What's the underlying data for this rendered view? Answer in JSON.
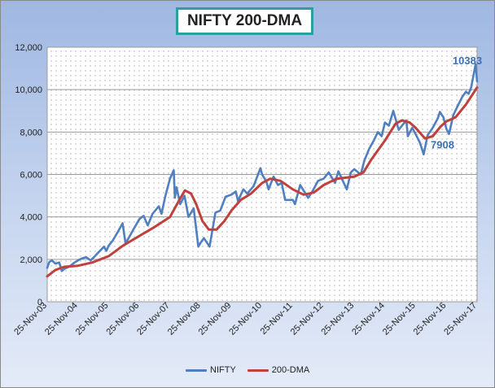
{
  "chart_data": {
    "type": "line",
    "title": "NIFTY 200-DMA",
    "xlabel": "",
    "ylabel": "",
    "ylim": [
      0,
      12000
    ],
    "yticks": [
      "0",
      "2,000",
      "4,000",
      "6,000",
      "8,000",
      "10,000",
      "12,000"
    ],
    "xticks": [
      "25-Nov-03",
      "25-Nov-04",
      "25-Nov-05",
      "25-Nov-06",
      "25-Nov-07",
      "25-Nov-08",
      "25-Nov-09",
      "25-Nov-10",
      "25-Nov-11",
      "25-Nov-12",
      "25-Nov-13",
      "25-Nov-14",
      "25-Nov-15",
      "25-Nov-16",
      "25-Nov-17"
    ],
    "grid": true,
    "legend": "bottom",
    "series": [
      {
        "name": "NIFTY",
        "color": "#4f7fc0",
        "points": [
          [
            "2003-11-25",
            1600
          ],
          [
            "2003-12-20",
            1880
          ],
          [
            "2004-01-20",
            1950
          ],
          [
            "2004-03-01",
            1800
          ],
          [
            "2004-04-15",
            1850
          ],
          [
            "2004-05-17",
            1450
          ],
          [
            "2004-06-15",
            1550
          ],
          [
            "2004-08-10",
            1650
          ],
          [
            "2004-10-15",
            1850
          ],
          [
            "2004-11-25",
            1950
          ],
          [
            "2005-01-15",
            2050
          ],
          [
            "2005-03-01",
            2100
          ],
          [
            "2005-04-25",
            1950
          ],
          [
            "2005-06-15",
            2150
          ],
          [
            "2005-08-01",
            2350
          ],
          [
            "2005-10-01",
            2600
          ],
          [
            "2005-10-28",
            2400
          ],
          [
            "2005-11-25",
            2650
          ],
          [
            "2006-01-15",
            2900
          ],
          [
            "2006-03-15",
            3300
          ],
          [
            "2006-05-10",
            3700
          ],
          [
            "2006-06-14",
            2750
          ],
          [
            "2006-07-20",
            3000
          ],
          [
            "2006-09-15",
            3400
          ],
          [
            "2006-11-25",
            3900
          ],
          [
            "2007-01-15",
            4050
          ],
          [
            "2007-03-05",
            3600
          ],
          [
            "2007-05-01",
            4150
          ],
          [
            "2007-07-15",
            4500
          ],
          [
            "2007-08-16",
            4150
          ],
          [
            "2007-10-01",
            5000
          ],
          [
            "2007-11-25",
            5800
          ],
          [
            "2008-01-08",
            6200
          ],
          [
            "2008-01-22",
            4900
          ],
          [
            "2008-02-10",
            5400
          ],
          [
            "2008-03-25",
            4600
          ],
          [
            "2008-05-15",
            5000
          ],
          [
            "2008-07-01",
            4000
          ],
          [
            "2008-09-01",
            4400
          ],
          [
            "2008-10-27",
            2600
          ],
          [
            "2008-11-25",
            2800
          ],
          [
            "2009-01-01",
            3000
          ],
          [
            "2009-03-09",
            2600
          ],
          [
            "2009-05-18",
            4200
          ],
          [
            "2009-07-15",
            4300
          ],
          [
            "2009-09-15",
            4950
          ],
          [
            "2009-11-25",
            5050
          ],
          [
            "2010-01-15",
            5200
          ],
          [
            "2010-02-10",
            4750
          ],
          [
            "2010-04-15",
            5300
          ],
          [
            "2010-06-01",
            5100
          ],
          [
            "2010-08-15",
            5450
          ],
          [
            "2010-11-05",
            6300
          ],
          [
            "2010-11-25",
            6000
          ],
          [
            "2011-01-15",
            5650
          ],
          [
            "2011-02-10",
            5300
          ],
          [
            "2011-04-10",
            5900
          ],
          [
            "2011-06-01",
            5500
          ],
          [
            "2011-07-15",
            5600
          ],
          [
            "2011-08-25",
            4800
          ],
          [
            "2011-11-25",
            4800
          ],
          [
            "2011-12-20",
            4600
          ],
          [
            "2012-02-20",
            5500
          ],
          [
            "2012-05-25",
            4900
          ],
          [
            "2012-07-15",
            5200
          ],
          [
            "2012-09-20",
            5700
          ],
          [
            "2012-11-25",
            5800
          ],
          [
            "2013-01-25",
            6100
          ],
          [
            "2013-04-10",
            5600
          ],
          [
            "2013-05-20",
            6150
          ],
          [
            "2013-08-28",
            5300
          ],
          [
            "2013-10-15",
            6100
          ],
          [
            "2013-11-25",
            6250
          ],
          [
            "2014-02-10",
            6000
          ],
          [
            "2014-03-25",
            6650
          ],
          [
            "2014-05-20",
            7200
          ],
          [
            "2014-07-15",
            7600
          ],
          [
            "2014-09-01",
            8000
          ],
          [
            "2014-10-17",
            7800
          ],
          [
            "2014-11-25",
            8450
          ],
          [
            "2015-01-10",
            8300
          ],
          [
            "2015-03-04",
            9000
          ],
          [
            "2015-05-07",
            8100
          ],
          [
            "2015-06-15",
            8300
          ],
          [
            "2015-08-06",
            8550
          ],
          [
            "2015-08-24",
            7800
          ],
          [
            "2015-10-15",
            8200
          ],
          [
            "2015-11-25",
            7900
          ],
          [
            "2016-01-15",
            7500
          ],
          [
            "2016-02-29",
            6950
          ],
          [
            "2016-04-15",
            7850
          ],
          [
            "2016-06-15",
            8200
          ],
          [
            "2016-08-15",
            8650
          ],
          [
            "2016-09-08",
            8950
          ],
          [
            "2016-10-20",
            8700
          ],
          [
            "2016-11-25",
            8150
          ],
          [
            "2016-12-26",
            7908
          ],
          [
            "2017-02-15",
            8800
          ],
          [
            "2017-04-10",
            9250
          ],
          [
            "2017-06-01",
            9650
          ],
          [
            "2017-07-15",
            9900
          ],
          [
            "2017-08-15",
            9800
          ],
          [
            "2017-09-15",
            10100
          ],
          [
            "2017-11-08",
            11200
          ],
          [
            "2017-11-25",
            10383
          ]
        ]
      },
      {
        "name": "200-DMA",
        "color": "#c0403c",
        "points": [
          [
            "2003-11-25",
            1200
          ],
          [
            "2004-03-01",
            1500
          ],
          [
            "2004-06-15",
            1650
          ],
          [
            "2004-11-25",
            1700
          ],
          [
            "2005-05-15",
            1850
          ],
          [
            "2005-11-25",
            2150
          ],
          [
            "2006-05-15",
            2650
          ],
          [
            "2006-11-25",
            3100
          ],
          [
            "2007-05-15",
            3500
          ],
          [
            "2007-11-25",
            4000
          ],
          [
            "2008-03-15",
            4800
          ],
          [
            "2008-05-20",
            5250
          ],
          [
            "2008-08-01",
            5100
          ],
          [
            "2008-10-01",
            4600
          ],
          [
            "2008-12-15",
            3800
          ],
          [
            "2009-03-01",
            3400
          ],
          [
            "2009-06-01",
            3400
          ],
          [
            "2009-09-01",
            3800
          ],
          [
            "2009-11-25",
            4300
          ],
          [
            "2010-03-15",
            4800
          ],
          [
            "2010-07-15",
            5100
          ],
          [
            "2010-11-25",
            5600
          ],
          [
            "2011-03-01",
            5800
          ],
          [
            "2011-07-01",
            5700
          ],
          [
            "2011-11-25",
            5300
          ],
          [
            "2012-04-01",
            5050
          ],
          [
            "2012-08-01",
            5150
          ],
          [
            "2012-11-25",
            5500
          ],
          [
            "2013-05-01",
            5800
          ],
          [
            "2013-11-25",
            5900
          ],
          [
            "2014-03-15",
            6100
          ],
          [
            "2014-06-15",
            6700
          ],
          [
            "2014-11-25",
            7600
          ],
          [
            "2015-04-01",
            8400
          ],
          [
            "2015-06-15",
            8550
          ],
          [
            "2015-09-15",
            8450
          ],
          [
            "2015-11-25",
            8200
          ],
          [
            "2016-03-15",
            7700
          ],
          [
            "2016-06-15",
            7800
          ],
          [
            "2016-09-15",
            8250
          ],
          [
            "2016-11-25",
            8500
          ],
          [
            "2017-03-15",
            8700
          ],
          [
            "2017-07-15",
            9300
          ],
          [
            "2017-11-25",
            10100
          ]
        ]
      }
    ],
    "annotations": [
      {
        "text": "10383",
        "x": "2017-11-25",
        "y": 10383
      },
      {
        "text": "7908",
        "x": "2016-12-26",
        "y": 7908
      }
    ]
  }
}
